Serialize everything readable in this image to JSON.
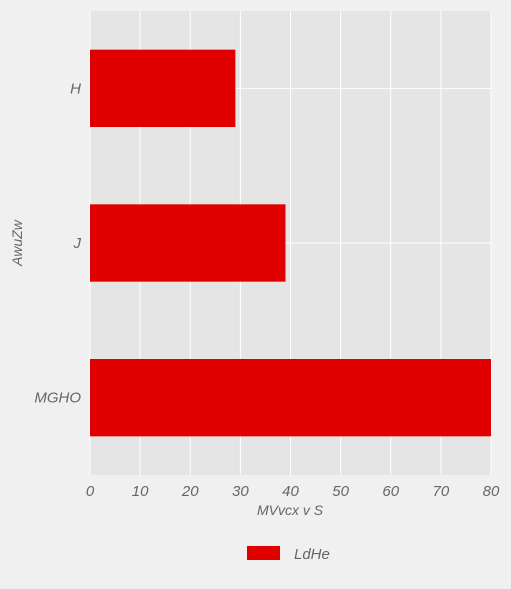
{
  "chart_data": {
    "type": "bar",
    "orientation": "horizontal",
    "title": "",
    "xlabel": "MVvcx v   S",
    "ylabel": "AwuZw",
    "categories": [
      "H",
      "J",
      "MGHO"
    ],
    "series": [
      {
        "name": "LdHe",
        "values": [
          29,
          39,
          80
        ],
        "color": "#e00000"
      }
    ],
    "xlim": [
      0,
      80
    ],
    "xticks": [
      0,
      10,
      20,
      30,
      40,
      50,
      60,
      70,
      80
    ],
    "grid": true,
    "legend_position": "bottom-center",
    "colors": {
      "background": "#f0f0f0",
      "plot_background": "#e5e5e5",
      "grid": "#ffffff",
      "text": "#666666"
    }
  }
}
